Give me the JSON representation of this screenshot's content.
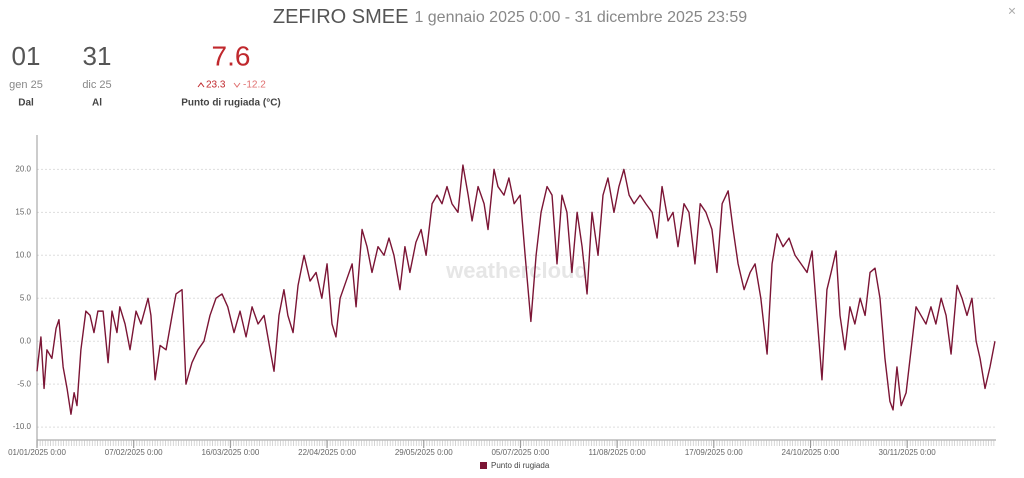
{
  "header": {
    "title": "ZEFIRO SMEE",
    "subtitle": "1 gennaio 2025 0:00 - 31 dicembre 2025 23:59",
    "close": "×"
  },
  "stats": [
    {
      "value": "01",
      "sub": "gen 25",
      "label": "Dal"
    },
    {
      "value": "31",
      "sub": "dic 25",
      "label": "Al"
    },
    {
      "value": "7.6",
      "max": "23.3",
      "min": "-12.2",
      "label": "Punto di rugiada (°C)"
    }
  ],
  "watermark": "weathercloud",
  "chart_data": {
    "type": "line",
    "x": [
      0,
      1.5,
      2.7,
      3.8,
      5.7,
      7.3,
      8.4,
      10,
      11.5,
      13,
      14.2,
      15.3,
      16.8,
      18.7,
      20.3,
      21.8,
      23.3,
      25.3,
      27.2,
      28.7,
      30.6,
      31.7,
      33.7,
      35.6,
      37.9,
      39.8,
      42.5,
      43.6,
      45.2,
      47.1,
      49.4,
      51.7,
      53.2,
      55.5,
      57,
      59.3,
      61.6,
      63.9,
      66.2,
      68.5,
      70.8,
      73,
      75.4,
      77.7,
      80,
      82.3,
      84.6,
      86.9,
      89.2,
      90.7,
      92.6,
      94.5,
      96,
      98,
      99.9,
      102.2,
      104.5,
      106.8,
      109,
      111,
      112.9,
      114.4,
      116,
      118.3,
      120.6,
      122.1,
      124.4,
      126.3,
      128.2,
      130.5,
      132.8,
      134.7,
      136.6,
      138.9,
      140.8,
      142.7,
      145,
      147,
      148.9,
      151.2,
      153.1,
      155,
      156.9,
      158.8,
      161.1,
      163,
      165,
      166.5,
      168.8,
      171.1,
      172.6,
      174.9,
      176.4,
      178.7,
      180.6,
      182.6,
      184.9,
      186.8,
      189,
      191,
      192.9,
      195.2,
      197.1,
      199,
      200.9,
      202.8,
      204.7,
      206.7,
      208.6,
      210.5,
      212.4,
      214.7,
      216.6,
      218.5,
      220.8,
      222.7,
      224.6,
      226.6,
      228.5,
      230.8,
      233,
      235.4,
      237.3,
      239.2,
      241.5,
      243.4,
      245.3,
      247.6,
      249.5,
      251.8,
      253.8,
      256,
      258.3,
      260.2,
      262.2,
      264.5,
      266.4,
      268.3,
      270.6,
      272.9,
      274.8,
      277,
      279.4,
      281.3,
      283.2,
      285.5,
      287.8,
      290.1,
      292.4,
      294.7,
      296.6,
      298.5,
      300.4,
      302.3,
      303.9,
      305.8,
      307.3,
      309.2,
      311.1,
      313,
      315,
      316.9,
      318.8,
      320.7,
      322.6,
      324.5,
      326.4,
      327.6,
      329.1,
      330.7,
      332.6,
      334.5,
      336.4,
      338.3,
      340.2,
      342.1,
      344,
      346,
      347.9,
      349.8,
      352.1,
      354,
      355.9,
      357.8,
      359.4,
      360.9,
      362.8,
      364.7,
      366.6
    ],
    "series": [
      {
        "name": "Punto di rugiada",
        "color": "#7b1535",
        "values": [
          -3.5,
          0.5,
          -5.5,
          -1,
          -2,
          1.5,
          2.5,
          -3,
          -5.5,
          -8.5,
          -6,
          -7.5,
          -1,
          3.5,
          3,
          1,
          3.5,
          3.5,
          -2.5,
          3.5,
          1,
          4,
          2,
          -1,
          3.5,
          2,
          5,
          3,
          -4.5,
          -0.5,
          -1,
          3,
          5.5,
          6,
          -5,
          -2.5,
          -1,
          0,
          3,
          5,
          5.5,
          4,
          1,
          3.5,
          0.5,
          4,
          2,
          3,
          -1,
          -3.5,
          3,
          6,
          3,
          1,
          6.5,
          10,
          7,
          8,
          5,
          9,
          2,
          0.5,
          5,
          7,
          9,
          4,
          13,
          11,
          8,
          11,
          10,
          12,
          10,
          6,
          11,
          8,
          11.5,
          13,
          10,
          16,
          17,
          16,
          18,
          16,
          15,
          20.5,
          17,
          14,
          18,
          16,
          13,
          20,
          18,
          17,
          19,
          16,
          17,
          10,
          2.3,
          10,
          15,
          18,
          17,
          9,
          17,
          15,
          8,
          15,
          11,
          5.5,
          15,
          10,
          17,
          19,
          15,
          18,
          20,
          17,
          16,
          17,
          16,
          15,
          12,
          18,
          14,
          15,
          11,
          16,
          15,
          9,
          16,
          15,
          13,
          8,
          16,
          17.5,
          13,
          9,
          6,
          8,
          9,
          5,
          -1.5,
          9,
          12.5,
          11,
          12,
          10,
          9,
          8,
          10.5,
          3,
          -4.5,
          6,
          8,
          10.5,
          3,
          -1,
          4,
          2,
          5,
          3,
          8,
          8.5,
          5,
          -2,
          -7,
          -8,
          -3,
          -7.5,
          -6,
          -1,
          4,
          3,
          2,
          4,
          2,
          5,
          3,
          -1.5,
          6.5,
          5,
          3,
          5,
          0,
          -2,
          -5.5,
          -3,
          0
        ]
      }
    ],
    "xlim": [
      0,
      367
    ],
    "xticks": [
      {
        "value": 0,
        "label": "01/01/2025 0:00"
      },
      {
        "value": 37,
        "label": "07/02/2025 0:00"
      },
      {
        "value": 74,
        "label": "16/03/2025 0:00"
      },
      {
        "value": 111,
        "label": "22/04/2025 0:00"
      },
      {
        "value": 148,
        "label": "29/05/2025 0:00"
      },
      {
        "value": 185,
        "label": "05/07/2025 0:00"
      },
      {
        "value": 222,
        "label": "11/08/2025 0:00"
      },
      {
        "value": 259,
        "label": "17/09/2025 0:00"
      },
      {
        "value": 296,
        "label": "24/10/2025 0:00"
      },
      {
        "value": 333,
        "label": "30/11/2025 0:00"
      }
    ],
    "ylim": [
      -11.5,
      24
    ],
    "yticks": [
      {
        "value": -10,
        "label": "-10.0"
      },
      {
        "value": -5,
        "label": "-5.0"
      },
      {
        "value": 0,
        "label": "0.0"
      },
      {
        "value": 5,
        "label": "5.0"
      },
      {
        "value": 10,
        "label": "10.0"
      },
      {
        "value": 15,
        "label": "15.0"
      },
      {
        "value": 20,
        "label": "20.0"
      }
    ],
    "grid": true,
    "legend": "bottom"
  }
}
